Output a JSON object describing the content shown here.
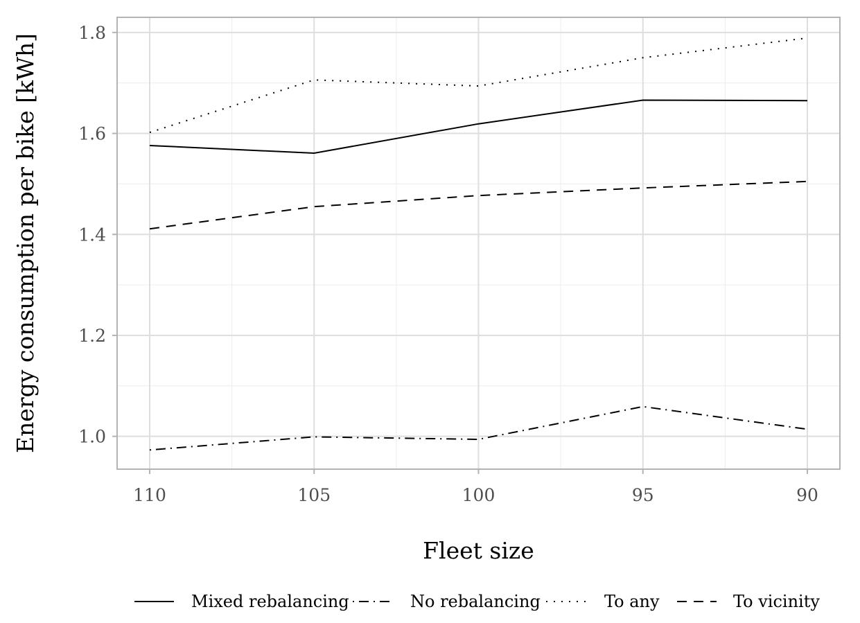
{
  "chart_data": {
    "type": "line",
    "title": "",
    "xlabel": "Fleet size",
    "ylabel": "Energy consumption per bike [kWh]",
    "categories": [
      "110",
      "105",
      "100",
      "95",
      "90"
    ],
    "ylim": [
      0.935,
      1.83
    ],
    "yticks": [
      1.0,
      1.2,
      1.4,
      1.6,
      1.8
    ],
    "ytick_labels": [
      "1.0",
      "1.2",
      "1.4",
      "1.6",
      "1.8"
    ],
    "grid": true,
    "legend_position": "bottom",
    "series": [
      {
        "name": "Mixed rebalancing",
        "style": "solid",
        "values": [
          1.576,
          1.561,
          1.619,
          1.666,
          1.665
        ]
      },
      {
        "name": "No rebalancing",
        "style": "dashdot",
        "values": [
          0.973,
          0.999,
          0.994,
          1.059,
          1.014
        ]
      },
      {
        "name": "To any",
        "style": "dotted",
        "values": [
          1.602,
          1.706,
          1.694,
          1.75,
          1.789
        ]
      },
      {
        "name": "To vicinity",
        "style": "dashed",
        "values": [
          1.411,
          1.455,
          1.477,
          1.492,
          1.505
        ]
      }
    ]
  }
}
